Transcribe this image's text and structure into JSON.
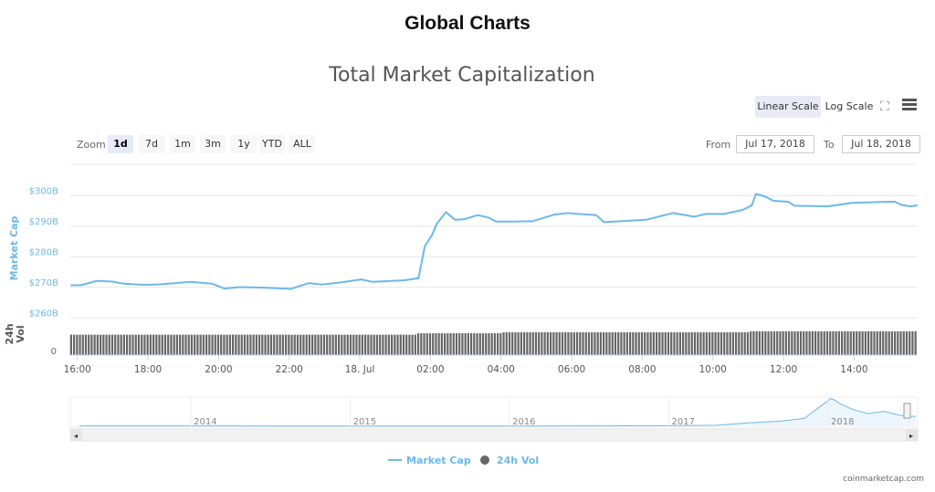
{
  "header": {
    "title": "Global Charts"
  },
  "toolbar": {
    "zoom_label": "Zoom",
    "zoom_buttons": [
      "1d",
      "7d",
      "1m",
      "3m",
      "1y",
      "YTD",
      "ALL"
    ],
    "selected": "1d",
    "linear_scale": "Linear Scale",
    "log_scale": "Log Scale",
    "from_label": "From",
    "from_value": "Jul 17, 2018",
    "to_label": "To",
    "to_value": "Jul 18, 2018"
  },
  "colors": {
    "line": "#6cb8ec",
    "bars": "#666666",
    "axis_label": "#6cb8ec"
  },
  "footer": {
    "credit": "coinmarketcap.com"
  },
  "chart_data": {
    "type": "line",
    "title": "Total Market Capitalization",
    "ylabel": "Market Cap",
    "y2label": "24h Vol",
    "ylim": [
      260,
      300
    ],
    "yticks": [
      "$300B",
      "$290B",
      "$280B",
      "$270B",
      "$260B"
    ],
    "ytick_values": [
      300,
      290,
      280,
      270,
      260
    ],
    "vol_tick": "0",
    "xlim_hours": [
      15.8,
      39.8
    ],
    "xticks": [
      {
        "h": 16,
        "label": "16:00"
      },
      {
        "h": 18,
        "label": "18:00"
      },
      {
        "h": 20,
        "label": "20:00"
      },
      {
        "h": 22,
        "label": "22:00"
      },
      {
        "h": 24,
        "label": "18. Jul"
      },
      {
        "h": 26,
        "label": "02:00"
      },
      {
        "h": 28,
        "label": "04:00"
      },
      {
        "h": 30,
        "label": "06:00"
      },
      {
        "h": 32,
        "label": "08:00"
      },
      {
        "h": 34,
        "label": "10:00"
      },
      {
        "h": 36,
        "label": "12:00"
      },
      {
        "h": 38,
        "label": "14:00"
      }
    ],
    "series": [
      {
        "name": "Market Cap",
        "unit": "B USD",
        "points": [
          [
            15.81,
            270.7
          ],
          [
            16.1,
            270.7
          ],
          [
            16.54,
            272.1
          ],
          [
            16.97,
            271.9
          ],
          [
            17.32,
            271.2
          ],
          [
            17.91,
            270.8
          ],
          [
            18.35,
            271.0
          ],
          [
            19.2,
            271.8
          ],
          [
            19.82,
            271.2
          ],
          [
            20.16,
            269.6
          ],
          [
            20.6,
            270.1
          ],
          [
            21.27,
            269.9
          ],
          [
            22.05,
            269.5
          ],
          [
            22.56,
            271.4
          ],
          [
            22.93,
            270.9
          ],
          [
            23.52,
            271.7
          ],
          [
            24.04,
            272.6
          ],
          [
            24.37,
            271.8
          ],
          [
            25.25,
            272.3
          ],
          [
            25.66,
            273.0
          ],
          [
            25.84,
            283.4
          ],
          [
            26.05,
            287.2
          ],
          [
            26.18,
            290.8
          ],
          [
            26.44,
            294.6
          ],
          [
            26.7,
            292.1
          ],
          [
            26.96,
            292.3
          ],
          [
            27.34,
            293.6
          ],
          [
            27.65,
            292.8
          ],
          [
            27.86,
            291.5
          ],
          [
            28.3,
            291.5
          ],
          [
            28.89,
            291.6
          ],
          [
            29.51,
            293.8
          ],
          [
            29.9,
            294.3
          ],
          [
            30.19,
            294.0
          ],
          [
            30.7,
            293.6
          ],
          [
            30.91,
            291.3
          ],
          [
            31.22,
            291.5
          ],
          [
            32.1,
            292.1
          ],
          [
            32.87,
            294.3
          ],
          [
            33.47,
            293.1
          ],
          [
            33.8,
            294.0
          ],
          [
            34.32,
            294.0
          ],
          [
            34.84,
            295.3
          ],
          [
            35.1,
            296.8
          ],
          [
            35.22,
            300.5
          ],
          [
            35.46,
            299.8
          ],
          [
            35.72,
            298.3
          ],
          [
            36.13,
            298.0
          ],
          [
            36.31,
            296.7
          ],
          [
            37.27,
            296.5
          ],
          [
            37.94,
            297.6
          ],
          [
            38.97,
            298.0
          ],
          [
            39.15,
            298.0
          ],
          [
            39.33,
            297.0
          ],
          [
            39.59,
            296.5
          ],
          [
            39.8,
            296.8
          ]
        ]
      },
      {
        "name": "24h Vol",
        "relative_levels": [
          [
            15.8,
            0.86
          ],
          [
            25.6,
            0.92
          ],
          [
            28.0,
            0.96
          ],
          [
            35.0,
            1.0
          ]
        ]
      }
    ],
    "legend": [
      "Market Cap",
      "24h Vol"
    ],
    "legend_position": "bottom-center",
    "navigator": {
      "xlabels": [
        "2014",
        "2015",
        "2016",
        "2017",
        "2018"
      ],
      "xlim_years": [
        2013.3,
        2018.55
      ],
      "ymax": 830,
      "points": [
        [
          2013.3,
          10
        ],
        [
          2014.0,
          11
        ],
        [
          2014.5,
          8
        ],
        [
          2015.0,
          6
        ],
        [
          2016.0,
          7
        ],
        [
          2016.5,
          10
        ],
        [
          2017.0,
          17
        ],
        [
          2017.3,
          30
        ],
        [
          2017.5,
          100
        ],
        [
          2017.7,
          150
        ],
        [
          2017.85,
          230
        ],
        [
          2017.95,
          580
        ],
        [
          2018.02,
          820
        ],
        [
          2018.08,
          650
        ],
        [
          2018.15,
          500
        ],
        [
          2018.25,
          370
        ],
        [
          2018.35,
          440
        ],
        [
          2018.45,
          320
        ],
        [
          2018.55,
          290
        ]
      ]
    }
  }
}
